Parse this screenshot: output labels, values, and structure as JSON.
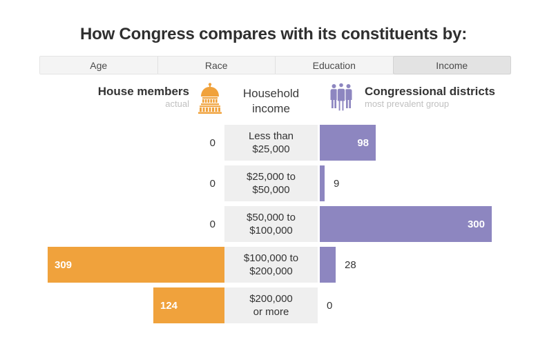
{
  "page": {
    "title": "How Congress compares with its constituents by:"
  },
  "tabs": [
    {
      "label": "Age",
      "selected": false
    },
    {
      "label": "Race",
      "selected": false
    },
    {
      "label": "Education",
      "selected": false
    },
    {
      "label": "Income",
      "selected": true
    }
  ],
  "legend": {
    "left": {
      "title": "House members",
      "subtitle": "actual",
      "icon": "capitol-icon"
    },
    "center_title": "Household\nincome",
    "right": {
      "title": "Congressional districts",
      "subtitle": "most prevalent group",
      "icon": "people-group-icon"
    }
  },
  "colors": {
    "house_bar": "#F0A23C",
    "district_bar": "#8D86C0",
    "category_box": "#EFEFEF",
    "inside_label_text": "#FFFFFF",
    "outside_label_text": "#333333",
    "tab_bg": "#F4F4F4",
    "tab_selected_bg": "#E3E3E3",
    "muted_text": "#C0C0C0",
    "title_text": "#2F2F2F"
  },
  "chart_data": {
    "type": "bar",
    "orientation": "diverging-horizontal",
    "title": "How Congress compares with its constituents by: Income",
    "categories": [
      "Less than\n$25,000",
      "$25,000 to\n$50,000",
      "$50,000 to\n$100,000",
      "$100,000 to\n$200,000",
      "$200,000\nor more"
    ],
    "series": [
      {
        "name": "House members",
        "side": "left",
        "color": "#F0A23C",
        "values": [
          0,
          0,
          0,
          309,
          124
        ]
      },
      {
        "name": "Congressional districts",
        "side": "right",
        "color": "#8D86C0",
        "values": [
          98,
          9,
          300,
          28,
          0
        ]
      }
    ],
    "value_range": [
      0,
      309
    ],
    "legend_position": "top",
    "grid": false
  }
}
